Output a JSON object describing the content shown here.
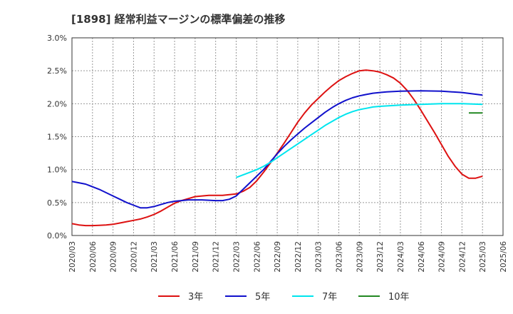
{
  "chart_data": {
    "type": "line",
    "title": "[1898]  経常利益マージンの標準偏差の推移",
    "xlabel": "",
    "ylabel": "",
    "ylim": [
      0,
      3.0
    ],
    "yticks": [
      "0.0%",
      "0.5%",
      "1.0%",
      "1.5%",
      "2.0%",
      "2.5%",
      "3.0%"
    ],
    "x_categories": [
      "2020/03",
      "2020/06",
      "2020/09",
      "2020/12",
      "2021/03",
      "2021/06",
      "2021/09",
      "2021/12",
      "2022/03",
      "2022/06",
      "2022/09",
      "2022/12",
      "2023/03",
      "2023/06",
      "2023/09",
      "2023/12",
      "2024/03",
      "2024/06",
      "2024/09",
      "2024/12",
      "2025/03",
      "2025/06"
    ],
    "grid": true,
    "legend_position": "bottom",
    "series": [
      {
        "name": "3年",
        "color": "#dd1111",
        "points": [
          [
            "2020/03",
            0.18
          ],
          [
            "2020/04",
            0.16
          ],
          [
            "2020/05",
            0.15
          ],
          [
            "2020/06",
            0.15
          ],
          [
            "2020/07",
            0.155
          ],
          [
            "2020/08",
            0.16
          ],
          [
            "2020/09",
            0.17
          ],
          [
            "2020/10",
            0.19
          ],
          [
            "2020/11",
            0.21
          ],
          [
            "2020/12",
            0.23
          ],
          [
            "2021/01",
            0.25
          ],
          [
            "2021/02",
            0.28
          ],
          [
            "2021/03",
            0.32
          ],
          [
            "2021/04",
            0.37
          ],
          [
            "2021/05",
            0.43
          ],
          [
            "2021/06",
            0.49
          ],
          [
            "2021/07",
            0.53
          ],
          [
            "2021/08",
            0.56
          ],
          [
            "2021/09",
            0.59
          ],
          [
            "2021/10",
            0.6
          ],
          [
            "2021/11",
            0.61
          ],
          [
            "2021/12",
            0.61
          ],
          [
            "2022/01",
            0.61
          ],
          [
            "2022/02",
            0.62
          ],
          [
            "2022/03",
            0.63
          ],
          [
            "2022/04",
            0.67
          ],
          [
            "2022/05",
            0.73
          ],
          [
            "2022/06",
            0.83
          ],
          [
            "2022/07",
            0.96
          ],
          [
            "2022/08",
            1.1
          ],
          [
            "2022/09",
            1.25
          ],
          [
            "2022/10",
            1.4
          ],
          [
            "2022/11",
            1.56
          ],
          [
            "2022/12",
            1.72
          ],
          [
            "2023/01",
            1.86
          ],
          [
            "2023/02",
            1.98
          ],
          [
            "2023/03",
            2.08
          ],
          [
            "2023/04",
            2.18
          ],
          [
            "2023/05",
            2.27
          ],
          [
            "2023/06",
            2.35
          ],
          [
            "2023/07",
            2.41
          ],
          [
            "2023/08",
            2.46
          ],
          [
            "2023/09",
            2.5
          ],
          [
            "2023/10",
            2.51
          ],
          [
            "2023/11",
            2.5
          ],
          [
            "2023/12",
            2.48
          ],
          [
            "2024/01",
            2.44
          ],
          [
            "2024/02",
            2.39
          ],
          [
            "2024/03",
            2.31
          ],
          [
            "2024/04",
            2.2
          ],
          [
            "2024/05",
            2.06
          ],
          [
            "2024/06",
            1.9
          ],
          [
            "2024/07",
            1.73
          ],
          [
            "2024/08",
            1.56
          ],
          [
            "2024/09",
            1.38
          ],
          [
            "2024/10",
            1.2
          ],
          [
            "2024/11",
            1.05
          ],
          [
            "2024/12",
            0.93
          ],
          [
            "2025/01",
            0.87
          ],
          [
            "2025/02",
            0.87
          ],
          [
            "2025/03",
            0.9
          ]
        ]
      },
      {
        "name": "5年",
        "color": "#1111cc",
        "points": [
          [
            "2020/03",
            0.82
          ],
          [
            "2020/04",
            0.8
          ],
          [
            "2020/05",
            0.78
          ],
          [
            "2020/06",
            0.74
          ],
          [
            "2020/07",
            0.7
          ],
          [
            "2020/08",
            0.65
          ],
          [
            "2020/09",
            0.6
          ],
          [
            "2020/10",
            0.55
          ],
          [
            "2020/11",
            0.5
          ],
          [
            "2020/12",
            0.46
          ],
          [
            "2021/01",
            0.42
          ],
          [
            "2021/02",
            0.42
          ],
          [
            "2021/03",
            0.44
          ],
          [
            "2021/04",
            0.47
          ],
          [
            "2021/05",
            0.5
          ],
          [
            "2021/06",
            0.52
          ],
          [
            "2021/07",
            0.53
          ],
          [
            "2021/08",
            0.54
          ],
          [
            "2021/09",
            0.54
          ],
          [
            "2021/10",
            0.54
          ],
          [
            "2021/11",
            0.535
          ],
          [
            "2021/12",
            0.53
          ],
          [
            "2022/01",
            0.53
          ],
          [
            "2022/02",
            0.55
          ],
          [
            "2022/03",
            0.6
          ],
          [
            "2022/04",
            0.7
          ],
          [
            "2022/05",
            0.8
          ],
          [
            "2022/06",
            0.9
          ],
          [
            "2022/07",
            1.0
          ],
          [
            "2022/08",
            1.12
          ],
          [
            "2022/09",
            1.24
          ],
          [
            "2022/10",
            1.35
          ],
          [
            "2022/11",
            1.45
          ],
          [
            "2022/12",
            1.54
          ],
          [
            "2023/01",
            1.63
          ],
          [
            "2023/02",
            1.71
          ],
          [
            "2023/03",
            1.79
          ],
          [
            "2023/04",
            1.87
          ],
          [
            "2023/05",
            1.94
          ],
          [
            "2023/06",
            2.0
          ],
          [
            "2023/07",
            2.05
          ],
          [
            "2023/08",
            2.09
          ],
          [
            "2023/09",
            2.12
          ],
          [
            "2023/10",
            2.14
          ],
          [
            "2023/11",
            2.16
          ],
          [
            "2023/12",
            2.17
          ],
          [
            "2024/01",
            2.18
          ],
          [
            "2024/02",
            2.185
          ],
          [
            "2024/03",
            2.19
          ],
          [
            "2024/06",
            2.195
          ],
          [
            "2024/09",
            2.19
          ],
          [
            "2024/12",
            2.17
          ],
          [
            "2025/03",
            2.13
          ]
        ]
      },
      {
        "name": "7年",
        "color": "#00e5ee",
        "points": [
          [
            "2022/03",
            0.88
          ],
          [
            "2022/04",
            0.92
          ],
          [
            "2022/05",
            0.96
          ],
          [
            "2022/06",
            1.0
          ],
          [
            "2022/07",
            1.05
          ],
          [
            "2022/08",
            1.11
          ],
          [
            "2022/09",
            1.18
          ],
          [
            "2022/10",
            1.25
          ],
          [
            "2022/11",
            1.32
          ],
          [
            "2022/12",
            1.39
          ],
          [
            "2023/01",
            1.46
          ],
          [
            "2023/02",
            1.53
          ],
          [
            "2023/03",
            1.6
          ],
          [
            "2023/04",
            1.67
          ],
          [
            "2023/05",
            1.73
          ],
          [
            "2023/06",
            1.79
          ],
          [
            "2023/07",
            1.84
          ],
          [
            "2023/08",
            1.88
          ],
          [
            "2023/09",
            1.91
          ],
          [
            "2023/10",
            1.93
          ],
          [
            "2023/11",
            1.95
          ],
          [
            "2023/12",
            1.96
          ],
          [
            "2024/03",
            1.98
          ],
          [
            "2024/06",
            1.99
          ],
          [
            "2024/09",
            2.0
          ],
          [
            "2024/12",
            2.0
          ],
          [
            "2025/03",
            1.99
          ]
        ]
      },
      {
        "name": "10年",
        "color": "#228822",
        "points": [
          [
            "2025/01",
            1.86
          ],
          [
            "2025/03",
            1.86
          ]
        ]
      }
    ]
  }
}
